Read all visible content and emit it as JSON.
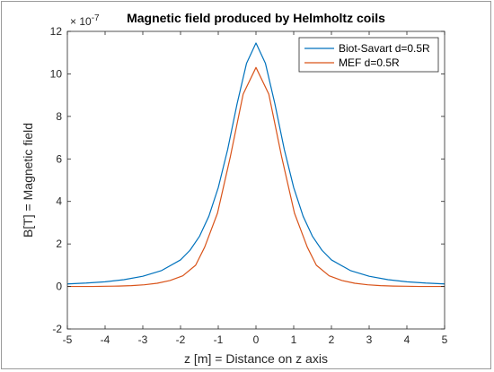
{
  "chart_data": {
    "type": "line",
    "title": "Magnetic field produced by Helmholtz coils",
    "xlabel": "z [m] = Distance on z axis",
    "ylabel": "B[T] = Magnetic field",
    "y_exponent_label": "× 10",
    "y_exponent_power": "-7",
    "xlim": [
      -5,
      5
    ],
    "ylim": [
      -2,
      12
    ],
    "xticks": [
      -5,
      -4,
      -3,
      -2,
      -1,
      0,
      1,
      2,
      3,
      4,
      5
    ],
    "yticks": [
      -2,
      0,
      2,
      4,
      6,
      8,
      10,
      12
    ],
    "xtick_labels": [
      "-5",
      "-4",
      "-3",
      "-2",
      "-1",
      "0",
      "1",
      "2",
      "3",
      "4",
      "5"
    ],
    "ytick_labels": [
      "-2",
      "0",
      "2",
      "4",
      "6",
      "8",
      "10",
      "12"
    ],
    "grid": false,
    "legend_position": "top-right",
    "series": [
      {
        "name": "Biot-Savart d=0.5R",
        "color": "#0072BD",
        "x": [
          -5,
          -4.5,
          -4,
          -3.5,
          -3,
          -2.5,
          -2,
          -1.75,
          -1.5,
          -1.25,
          -1,
          -0.75,
          -0.5,
          -0.25,
          0,
          0.25,
          0.5,
          0.75,
          1,
          1.25,
          1.5,
          1.75,
          2,
          2.5,
          3,
          3.5,
          4,
          4.5,
          5
        ],
        "y": [
          0.12,
          0.16,
          0.22,
          0.32,
          0.48,
          0.75,
          1.25,
          1.7,
          2.35,
          3.3,
          4.65,
          6.45,
          8.6,
          10.5,
          11.45,
          10.5,
          8.6,
          6.45,
          4.65,
          3.3,
          2.35,
          1.7,
          1.25,
          0.75,
          0.48,
          0.32,
          0.22,
          0.16,
          0.12
        ]
      },
      {
        "name": "MEF d=0.5R",
        "color": "#D95319",
        "x": [
          -5,
          -4.66,
          -4.32,
          -3.98,
          -3.64,
          -3.3,
          -2.96,
          -2.62,
          -2.28,
          -1.94,
          -1.6,
          -1.36,
          -1.02,
          -0.68,
          -0.34,
          0,
          0.34,
          0.68,
          1.02,
          1.36,
          1.6,
          1.94,
          2.28,
          2.62,
          2.96,
          3.3,
          3.64,
          3.98,
          4.32,
          4.66,
          5
        ],
        "y": [
          0,
          0,
          0,
          0.01,
          0.02,
          0.04,
          0.08,
          0.15,
          0.28,
          0.5,
          1.0,
          1.85,
          3.45,
          6.1,
          9.05,
          10.3,
          9.05,
          6.1,
          3.45,
          1.85,
          1.0,
          0.5,
          0.28,
          0.15,
          0.08,
          0.04,
          0.02,
          0.01,
          0,
          0,
          0
        ]
      }
    ]
  }
}
